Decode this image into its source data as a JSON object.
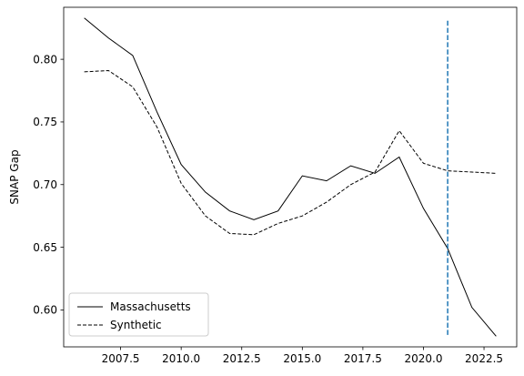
{
  "chart_data": {
    "type": "line",
    "title": "",
    "xlabel": "",
    "ylabel": "SNAP Gap",
    "xlim": [
      2005.15,
      2023.85
    ],
    "ylim": [
      0.5705,
      0.8415
    ],
    "xticks": [
      2007.5,
      2010.0,
      2012.5,
      2015.0,
      2017.5,
      2020.0,
      2022.5
    ],
    "xtick_labels": [
      "2007.5",
      "2010.0",
      "2012.5",
      "2015.0",
      "2017.5",
      "2020.0",
      "2022.5"
    ],
    "yticks": [
      0.6,
      0.65,
      0.7,
      0.75,
      0.8
    ],
    "ytick_labels": [
      "0.60",
      "0.65",
      "0.70",
      "0.75",
      "0.80"
    ],
    "grid": false,
    "legend": "lower-left",
    "series": [
      {
        "name": "Massachusetts",
        "style": "solid",
        "color": "#000000",
        "x": [
          2006,
          2007,
          2008,
          2009,
          2010,
          2011,
          2012,
          2013,
          2014,
          2015,
          2016,
          2017,
          2018,
          2019,
          2020,
          2021,
          2022,
          2023
        ],
        "y": [
          0.833,
          0.817,
          0.803,
          0.758,
          0.716,
          0.694,
          0.679,
          0.672,
          0.679,
          0.707,
          0.703,
          0.715,
          0.709,
          0.722,
          0.681,
          0.649,
          0.602,
          0.579
        ]
      },
      {
        "name": "Synthetic",
        "style": "dashed",
        "color": "#000000",
        "x": [
          2006,
          2007,
          2008,
          2009,
          2010,
          2011,
          2012,
          2013,
          2014,
          2015,
          2016,
          2017,
          2018,
          2019,
          2020,
          2021,
          2022,
          2023
        ],
        "y": [
          0.79,
          0.791,
          0.778,
          0.746,
          0.701,
          0.675,
          0.661,
          0.66,
          0.669,
          0.675,
          0.686,
          0.7,
          0.71,
          0.743,
          0.717,
          0.711,
          0.71,
          0.709
        ]
      }
    ],
    "vlines": [
      {
        "x": 2021,
        "ymin": 0.58,
        "ymax": 0.832,
        "style": "dashed",
        "color": "#1f77b4"
      }
    ]
  }
}
